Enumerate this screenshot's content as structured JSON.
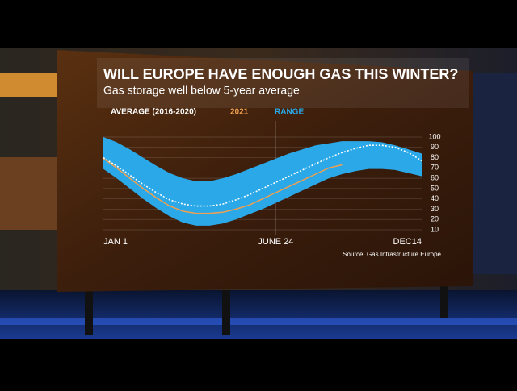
{
  "chart_data": {
    "type": "line",
    "title": "WILL EUROPE HAVE ENOUGH GAS THIS WINTER?",
    "subtitle": "Gas storage well below 5-year average",
    "source": "Source: Gas Infrastructure Europe",
    "categories": [
      "JAN 1",
      null,
      null,
      null,
      null,
      null,
      null,
      null,
      null,
      null,
      null,
      null,
      null,
      "JUNE 24",
      null,
      null,
      null,
      null,
      null,
      null,
      null,
      null,
      null,
      null,
      "DEC14"
    ],
    "series": [
      {
        "name": "AVERAGE (2016-2020)",
        "color": "#ffffff",
        "values": [
          80,
          72,
          63,
          54,
          46,
          39,
          35,
          33,
          33,
          35,
          39,
          44,
          50,
          56,
          62,
          68,
          74,
          80,
          85,
          89,
          92,
          92,
          90,
          85,
          77
        ]
      },
      {
        "name": "2021",
        "color": "#f0a050",
        "values": [
          79,
          70,
          60,
          50,
          41,
          33,
          28,
          26,
          26,
          27,
          30,
          34,
          40,
          46,
          52,
          58,
          64,
          70,
          73,
          null,
          null,
          null,
          null,
          null,
          null
        ]
      },
      {
        "name": "RANGE",
        "color": "#2aa8e8",
        "values": [
          100,
          95,
          88,
          80,
          72,
          65,
          60,
          57,
          57,
          60,
          64,
          69,
          74,
          79,
          84,
          88,
          92,
          94,
          96,
          96,
          96,
          95,
          92,
          88,
          84
        ],
        "low": [
          69,
          60,
          50,
          40,
          31,
          23,
          17,
          14,
          14,
          16,
          20,
          25,
          30,
          36,
          42,
          48,
          54,
          60,
          64,
          67,
          69,
          69,
          68,
          65,
          62
        ]
      }
    ],
    "ylim": [
      10,
      100
    ],
    "yticks": [
      10,
      20,
      30,
      40,
      50,
      60,
      70,
      80,
      90,
      100
    ],
    "grid": true
  }
}
